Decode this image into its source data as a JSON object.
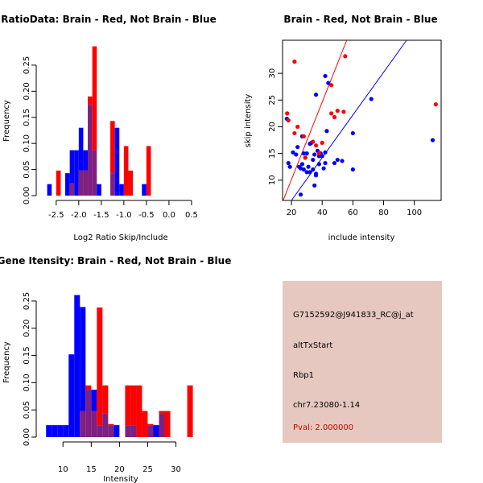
{
  "colors": {
    "brain": "#ff0000",
    "not_brain": "#0000ff",
    "overlap": "#7f1f7f",
    "info_bg": "#e6c8c0",
    "pval_text": "#cc0000"
  },
  "chart_data": [
    {
      "id": "ratio",
      "type": "bar",
      "title": "RatioData: Brain - Red, Not Brain - Blue",
      "xlabel": "Log2 Ratio Skip/Include",
      "ylabel": "Frequency",
      "xlim": [
        -2.8,
        0.68
      ],
      "ylim": [
        0,
        0.29
      ],
      "xticks": [
        -2.5,
        -2.0,
        -1.5,
        -1.0,
        -0.5,
        0.0,
        0.5
      ],
      "xticklabels": [
        "-2.5",
        "-2.0",
        "-1.5",
        "-1.0",
        "-0.5",
        "0.0",
        "0.5"
      ],
      "yticks": [
        0.0,
        0.05,
        0.1,
        0.15,
        0.2,
        0.25
      ],
      "yticklabels": [
        "0.00",
        "0.05",
        "0.10",
        "0.15",
        "0.20",
        "0.25"
      ],
      "bin_start": -2.7,
      "bin_width": 0.1,
      "series": [
        {
          "name": "Not Brain",
          "values": [
            0.022,
            0,
            0,
            0,
            0.043,
            0.087,
            0.087,
            0.13,
            0.087,
            0.174,
            0.087,
            0.022,
            0,
            0,
            0.043,
            0.13,
            0.022,
            0,
            0,
            0,
            0,
            0.022,
            0
          ]
        },
        {
          "name": "Brain",
          "values": [
            0,
            0,
            0.048,
            0,
            0,
            0.024,
            0,
            0.048,
            0.048,
            0.19,
            0.286,
            0,
            0,
            0,
            0.143,
            0,
            0,
            0.095,
            0.048,
            0,
            0,
            0,
            0.095
          ]
        }
      ]
    },
    {
      "id": "scatter",
      "type": "scatter",
      "title": "Brain - Red, Not Brain - Blue",
      "xlabel": "include intensity",
      "ylabel": "skip intensity",
      "xlim": [
        14.2,
        117.5
      ],
      "ylim": [
        6.2,
        36.2
      ],
      "xticks": [
        20,
        40,
        60,
        80,
        100
      ],
      "xticklabels": [
        "20",
        "40",
        "60",
        "80",
        "100"
      ],
      "yticks": [
        10,
        15,
        20,
        25,
        30
      ],
      "yticklabels": [
        "10",
        "15",
        "20",
        "25",
        "30"
      ],
      "lines": [
        {
          "name": "Brain fit",
          "color": "red",
          "x": [
            14.6,
            56
          ],
          "y": [
            6.2,
            36.2
          ]
        },
        {
          "name": "Not Brain fit",
          "color": "blue",
          "x": [
            20,
            95
          ],
          "y": [
            6.2,
            36.2
          ]
        }
      ],
      "series": [
        {
          "name": "Brain",
          "color": "red",
          "points": [
            [
              17.2,
              22.5
            ],
            [
              18,
              21.2
            ],
            [
              22,
              18.8
            ],
            [
              24,
              20
            ],
            [
              22,
              32.2
            ],
            [
              28,
              18.2
            ],
            [
              34,
              17.2
            ],
            [
              36,
              16.5
            ],
            [
              40,
              17
            ],
            [
              46,
              27.8
            ],
            [
              46,
              22.5
            ],
            [
              48,
              21.8
            ],
            [
              50,
              23
            ],
            [
              54,
              22.8
            ],
            [
              55,
              33.2
            ],
            [
              114,
              24.2
            ],
            [
              29,
              14.2
            ],
            [
              38,
              15
            ]
          ]
        },
        {
          "name": "Not Brain",
          "color": "blue",
          "points": [
            [
              17,
              21.5
            ],
            [
              18,
              13.2
            ],
            [
              19,
              12.5
            ],
            [
              21,
              15.2
            ],
            [
              23,
              14.8
            ],
            [
              24,
              16.2
            ],
            [
              25,
              12.5
            ],
            [
              26,
              12.2
            ],
            [
              26,
              7.3
            ],
            [
              27,
              13
            ],
            [
              27,
              18.2
            ],
            [
              28,
              12
            ],
            [
              28,
              15
            ],
            [
              29,
              14.2
            ],
            [
              30,
              15
            ],
            [
              30,
              11.5
            ],
            [
              31,
              12.5
            ],
            [
              32,
              11.5
            ],
            [
              32,
              16.8
            ],
            [
              33,
              17
            ],
            [
              34,
              13.8
            ],
            [
              34,
              12
            ],
            [
              35,
              14.8
            ],
            [
              35,
              9
            ],
            [
              36,
              26
            ],
            [
              36,
              11.2
            ],
            [
              36,
              10.9
            ],
            [
              37,
              15.5
            ],
            [
              38,
              14.5
            ],
            [
              38,
              13
            ],
            [
              39,
              15
            ],
            [
              40,
              14.5
            ],
            [
              41,
              12.2
            ],
            [
              42,
              13.2
            ],
            [
              42,
              15.2
            ],
            [
              42,
              29.5
            ],
            [
              43,
              19.2
            ],
            [
              44,
              28.2
            ],
            [
              48,
              13.2
            ],
            [
              50,
              13.8
            ],
            [
              53,
              13.6
            ],
            [
              60,
              18.8
            ],
            [
              60,
              12
            ],
            [
              72,
              25.2
            ],
            [
              112,
              17.5
            ]
          ]
        }
      ]
    },
    {
      "id": "intensity",
      "type": "bar",
      "title": "Gene Itensity: Brain - Red, Not Brain - Blue",
      "xlabel": "Intensity",
      "ylabel": "Frequency",
      "xlim": [
        6.4,
        34.2
      ],
      "ylim": [
        0,
        0.278
      ],
      "xticks": [
        10,
        15,
        20,
        25,
        30
      ],
      "xticklabels": [
        "10",
        "15",
        "20",
        "25",
        "30"
      ],
      "yticks": [
        0.0,
        0.05,
        0.1,
        0.15,
        0.2,
        0.25
      ],
      "yticklabels": [
        "0.00",
        "0.05",
        "0.10",
        "0.15",
        "0.20",
        "0.25"
      ],
      "bin_start": 7,
      "bin_width": 1,
      "series": [
        {
          "name": "Not Brain",
          "values": [
            0.022,
            0.022,
            0.022,
            0.022,
            0.152,
            0.261,
            0.239,
            0.087,
            0.087,
            0.022,
            0.043,
            0.022,
            0.022,
            0,
            0.022,
            0.022,
            0,
            0,
            0.022,
            0.022,
            0.043,
            0,
            0,
            0,
            0
          ]
        },
        {
          "name": "Brain",
          "values": [
            0,
            0,
            0,
            0,
            0,
            0,
            0.048,
            0.095,
            0.048,
            0.238,
            0.095,
            0.024,
            0,
            0,
            0.095,
            0.095,
            0.095,
            0.048,
            0.024,
            0,
            0.048,
            0.048,
            0,
            0,
            0,
            0.095
          ]
        }
      ]
    }
  ],
  "info": {
    "probe": "G7152592@J941833_RC@j_at",
    "event": "altTxStart",
    "gene": "Rbp1",
    "coord": "chr7.23080-1.14",
    "pval": "Pval: 2.000000"
  }
}
